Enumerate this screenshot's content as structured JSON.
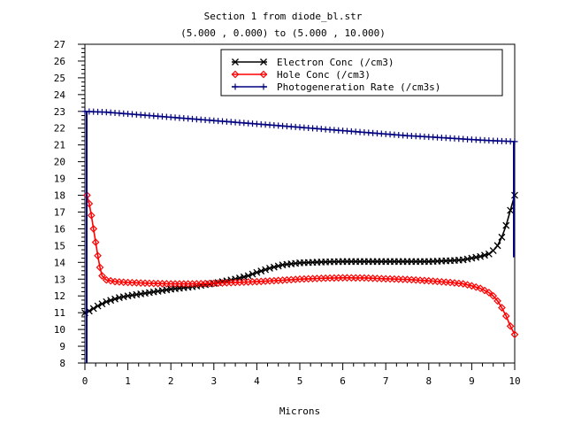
{
  "chart_data": {
    "type": "line",
    "title": "Section 1 from diode_bl.str",
    "subtitle": "(5.000 , 0.000) to (5.000 , 10.000)",
    "xlabel": "Microns",
    "ylabel": "",
    "xlim": [
      0,
      10
    ],
    "ylim": [
      8,
      27
    ],
    "x_ticks": [
      "0",
      "1",
      "2",
      "3",
      "4",
      "5",
      "6",
      "7",
      "8",
      "9",
      "10"
    ],
    "y_ticks": [
      "8",
      "9",
      "10",
      "11",
      "12",
      "13",
      "14",
      "15",
      "16",
      "17",
      "18",
      "19",
      "20",
      "21",
      "22",
      "23",
      "24",
      "25",
      "26",
      "27"
    ],
    "grid": false,
    "legend_position": "top-right",
    "series": [
      {
        "name": "Electron Conc (/cm3)",
        "color": "#000000",
        "marker": "x",
        "x": [
          0,
          0.1,
          0.2,
          0.3,
          0.5,
          0.8,
          1,
          1.5,
          2,
          2.5,
          3,
          3.5,
          3.8,
          4,
          4.3,
          4.6,
          5,
          5.5,
          6,
          6.5,
          7,
          7.5,
          8,
          8.5,
          8.8,
          9,
          9.2,
          9.4,
          9.5,
          9.6,
          9.7,
          9.8,
          9.9,
          10
        ],
        "values": [
          11.0,
          11.1,
          11.25,
          11.4,
          11.65,
          11.9,
          12.0,
          12.2,
          12.4,
          12.55,
          12.75,
          13.0,
          13.2,
          13.4,
          13.65,
          13.85,
          13.97,
          14.02,
          14.05,
          14.05,
          14.05,
          14.05,
          14.05,
          14.1,
          14.15,
          14.25,
          14.35,
          14.5,
          14.7,
          15.0,
          15.5,
          16.2,
          17.1,
          18.0
        ]
      },
      {
        "name": "Hole Conc (/cm3)",
        "color": "#ff0000",
        "marker": "diamond",
        "x": [
          0.05,
          0.1,
          0.15,
          0.2,
          0.25,
          0.3,
          0.35,
          0.4,
          0.5,
          0.7,
          1,
          1.5,
          2,
          2.5,
          3,
          3.5,
          4,
          4.5,
          5,
          5.5,
          6,
          6.5,
          7,
          7.5,
          8,
          8.5,
          8.8,
          9,
          9.2,
          9.4,
          9.5,
          9.6,
          9.7,
          9.8,
          9.9,
          10
        ],
        "values": [
          18.0,
          17.5,
          16.8,
          16.0,
          15.2,
          14.4,
          13.7,
          13.2,
          12.95,
          12.85,
          12.8,
          12.75,
          12.72,
          12.72,
          12.75,
          12.8,
          12.85,
          12.92,
          13.0,
          13.05,
          13.08,
          13.07,
          13.02,
          12.98,
          12.9,
          12.8,
          12.72,
          12.6,
          12.45,
          12.2,
          12.0,
          11.7,
          11.3,
          10.8,
          10.2,
          9.7
        ]
      },
      {
        "name": "Photogeneration Rate (/cm3s)",
        "color": "#000080",
        "marker": "plus",
        "x": [
          0,
          0.5,
          1,
          1.5,
          2,
          2.5,
          3,
          3.5,
          4,
          4.5,
          5,
          5.5,
          6,
          6.5,
          7,
          7.5,
          8,
          8.5,
          9,
          9.5,
          10
        ],
        "values": [
          23.0,
          22.95,
          22.85,
          22.75,
          22.65,
          22.55,
          22.45,
          22.35,
          22.25,
          22.15,
          22.05,
          21.95,
          21.85,
          21.75,
          21.65,
          21.55,
          21.48,
          21.4,
          21.32,
          21.25,
          21.2
        ]
      }
    ]
  }
}
